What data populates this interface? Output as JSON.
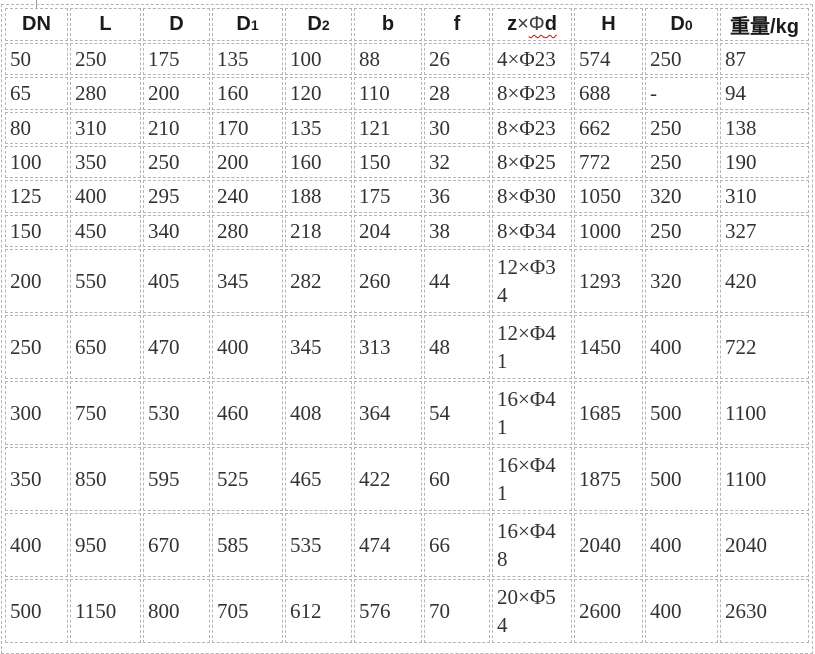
{
  "colors": {
    "border": "#b5b5b5",
    "text": "#333333",
    "header_text": "#1b1b1b",
    "wavy": "#e00000"
  },
  "table": {
    "columns": [
      {
        "name": "dn",
        "label": "DN"
      },
      {
        "name": "l",
        "label": "L"
      },
      {
        "name": "d",
        "label": "D"
      },
      {
        "name": "d1",
        "label": "D",
        "sub": "1"
      },
      {
        "name": "d2",
        "label": "D",
        "sub": "2"
      },
      {
        "name": "b",
        "label": "b"
      },
      {
        "name": "f",
        "label": "f"
      },
      {
        "name": "z-phi-d",
        "parts": [
          {
            "text": "z",
            "bold": true
          },
          {
            "text": "×",
            "bold": false
          },
          {
            "text": "Φ",
            "bold": false,
            "wavy": true
          },
          {
            "text": "d",
            "bold": true,
            "wavy": true
          }
        ]
      },
      {
        "name": "h",
        "label": "H"
      },
      {
        "name": "d0",
        "label": "D",
        "sub": "0"
      },
      {
        "name": "weight-kg",
        "label": "重量/kg"
      }
    ],
    "rows": [
      [
        "50",
        "250",
        "175",
        "135",
        "100",
        "88",
        "26",
        "4×Φ23",
        "574",
        "250",
        "87"
      ],
      [
        "65",
        "280",
        "200",
        "160",
        "120",
        "110",
        "28",
        "8×Φ23",
        "688",
        "-",
        "94"
      ],
      [
        "80",
        "310",
        "210",
        "170",
        "135",
        "121",
        "30",
        "8×Φ23",
        "662",
        "250",
        "138"
      ],
      [
        "100",
        "350",
        "250",
        "200",
        "160",
        "150",
        "32",
        "8×Φ25",
        "772",
        "250",
        "190"
      ],
      [
        "125",
        "400",
        "295",
        "240",
        "188",
        "175",
        "36",
        "8×Φ30",
        "1050",
        "320",
        "310"
      ],
      [
        "150",
        "450",
        "340",
        "280",
        "218",
        "204",
        "38",
        "8×Φ34",
        "1000",
        "250",
        "327"
      ],
      [
        "200",
        "550",
        "405",
        "345",
        "282",
        "260",
        "44",
        "12×Φ3\n4",
        "1293",
        "320",
        "420"
      ],
      [
        "250",
        "650",
        "470",
        "400",
        "345",
        "313",
        "48",
        "12×Φ4\n1",
        "1450",
        "400",
        "722"
      ],
      [
        "300",
        "750",
        "530",
        "460",
        "408",
        "364",
        "54",
        "16×Φ4\n1",
        "1685",
        "500",
        "1100"
      ],
      [
        "350",
        "850",
        "595",
        "525",
        "465",
        "422",
        "60",
        "16×Φ4\n1",
        "1875",
        "500",
        "1100"
      ],
      [
        "400",
        "950",
        "670",
        "585",
        "535",
        "474",
        "66",
        "16×Φ4\n8",
        "2040",
        "400",
        "2040"
      ],
      [
        "500",
        "1150",
        "800",
        "705",
        "612",
        "576",
        "70",
        "20×Φ5\n4",
        "2600",
        "400",
        "2630"
      ]
    ]
  }
}
